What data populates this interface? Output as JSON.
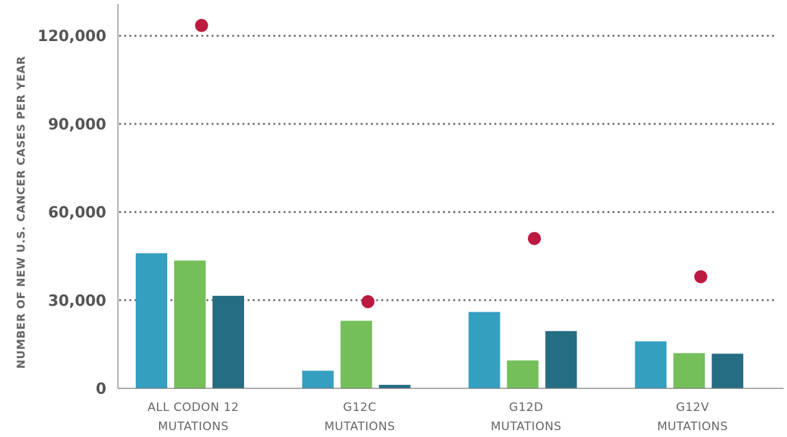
{
  "chart_data": {
    "type": "bar",
    "ylabel": "NUMBER OF NEW U.S. CANCER CASES PER YEAR",
    "ylim": [
      0,
      128000
    ],
    "yticks": [
      {
        "value": 0,
        "label": "0"
      },
      {
        "value": 30000,
        "label": "30,000"
      },
      {
        "value": 60000,
        "label": "60,000"
      },
      {
        "value": 90000,
        "label": "90,000"
      },
      {
        "value": 120000,
        "label": "120,000"
      }
    ],
    "grid": "dotted horizontal lines at 30,000, 60,000, 90,000 and 120,000",
    "categories": [
      {
        "line1": "ALL CODON 12",
        "line2": "MUTATIONS"
      },
      {
        "line1": "G12C",
        "line2": "MUTATIONS"
      },
      {
        "line1": "G12D",
        "line2": "MUTATIONS"
      },
      {
        "line1": "G12V",
        "line2": "MUTATIONS"
      }
    ],
    "series": [
      {
        "color": "#359fc1",
        "values": [
          46000,
          6000,
          26000,
          16000
        ]
      },
      {
        "color": "#74bf5a",
        "values": [
          43500,
          23000,
          9500,
          12000
        ]
      },
      {
        "color": "#246d83",
        "values": [
          31500,
          1200,
          19500,
          11800
        ]
      }
    ],
    "points": {
      "type": "scatter",
      "color": "#bc1a40",
      "values": [
        123500,
        29500,
        51000,
        38000
      ]
    }
  }
}
